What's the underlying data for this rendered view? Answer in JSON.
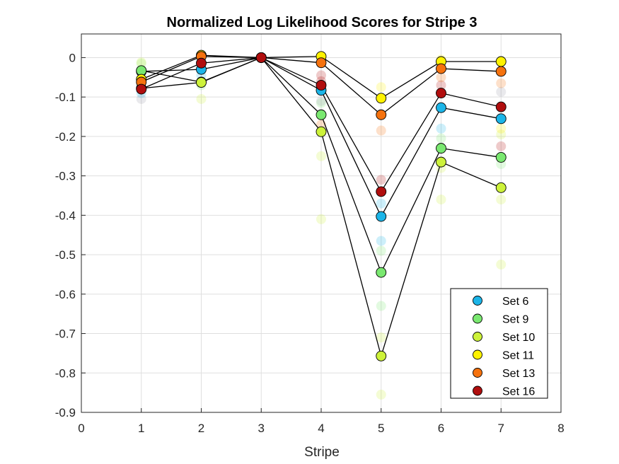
{
  "chart_data": {
    "type": "scatter",
    "title": "Normalized Log Likelihood Scores for Stripe 3",
    "xlabel": "Stripe",
    "ylabel": "",
    "xlim": [
      0,
      8
    ],
    "ylim": [
      -0.9,
      0.06
    ],
    "xticks": [
      "0",
      "1",
      "2",
      "3",
      "4",
      "5",
      "6",
      "7",
      "8"
    ],
    "yticks": [
      "0",
      "-0.1",
      "-0.2",
      "-0.3",
      "-0.4",
      "-0.5",
      "-0.6",
      "-0.7",
      "-0.8",
      "-0.9"
    ],
    "grid": true,
    "legend_position": "bottom-right",
    "x": [
      1,
      2,
      3,
      4,
      5,
      6,
      7
    ],
    "series": [
      {
        "name": "Set 6",
        "color": "#1CB5E8",
        "values": [
          -0.035,
          -0.03,
          0,
          -0.083,
          -0.403,
          -0.127,
          -0.155
        ]
      },
      {
        "name": "Set 9",
        "color": "#7AE870",
        "values": [
          -0.033,
          -0.062,
          0,
          -0.145,
          -0.545,
          -0.23,
          -0.253
        ]
      },
      {
        "name": "Set 10",
        "color": "#CDF23A",
        "values": [
          -0.078,
          -0.063,
          0,
          -0.188,
          -0.757,
          -0.265,
          -0.33
        ]
      },
      {
        "name": "Set 11",
        "color": "#FFF200",
        "values": [
          -0.055,
          0.006,
          0,
          0.003,
          -0.103,
          -0.01,
          -0.01
        ]
      },
      {
        "name": "Set 13",
        "color": "#F5720E",
        "values": [
          -0.062,
          0.003,
          0,
          -0.013,
          -0.145,
          -0.028,
          -0.035
        ]
      },
      {
        "name": "Set 16",
        "color": "#B00E0E",
        "values": [
          -0.08,
          -0.014,
          0,
          -0.07,
          -0.34,
          -0.09,
          -0.125
        ]
      }
    ],
    "faded_points": [
      {
        "color": "#9A9AAA",
        "x": 1,
        "y": -0.105
      },
      {
        "color": "#7AE870",
        "x": 1,
        "y": -0.015
      },
      {
        "color": "#CDF23A",
        "x": 1,
        "y": -0.012
      },
      {
        "color": "#1CB5E8",
        "x": 1,
        "y": -0.09
      },
      {
        "color": "#CDF23A",
        "x": 2,
        "y": -0.105
      },
      {
        "color": "#7AE870",
        "x": 2,
        "y": -0.07
      },
      {
        "color": "#1CB5E8",
        "x": 2,
        "y": -0.045
      },
      {
        "color": "#CDF23A",
        "x": 4,
        "y": -0.41
      },
      {
        "color": "#CDF23A",
        "x": 4,
        "y": -0.25
      },
      {
        "color": "#7AE870",
        "x": 4,
        "y": -0.115
      },
      {
        "color": "#F5720E",
        "x": 4,
        "y": -0.17
      },
      {
        "color": "#B00E0E",
        "x": 4,
        "y": -0.045
      },
      {
        "color": "#B00E0E",
        "x": 4,
        "y": -0.06
      },
      {
        "color": "#9A9AAA",
        "x": 4,
        "y": -0.11
      },
      {
        "color": "#CDF23A",
        "x": 5,
        "y": -0.855
      },
      {
        "color": "#CDF23A",
        "x": 5,
        "y": -0.71
      },
      {
        "color": "#7AE870",
        "x": 5,
        "y": -0.63
      },
      {
        "color": "#7AE870",
        "x": 5,
        "y": -0.49
      },
      {
        "color": "#1CB5E8",
        "x": 5,
        "y": -0.465
      },
      {
        "color": "#1CB5E8",
        "x": 5,
        "y": -0.37
      },
      {
        "color": "#B00E0E",
        "x": 5,
        "y": -0.31
      },
      {
        "color": "#F5720E",
        "x": 5,
        "y": -0.185
      },
      {
        "color": "#FFF200",
        "x": 5,
        "y": -0.075
      },
      {
        "color": "#CDF23A",
        "x": 6,
        "y": -0.36
      },
      {
        "color": "#CDF23A",
        "x": 6,
        "y": -0.28
      },
      {
        "color": "#1CB5E8",
        "x": 6,
        "y": -0.18
      },
      {
        "color": "#7AE870",
        "x": 6,
        "y": -0.205
      },
      {
        "color": "#B00E0E",
        "x": 6,
        "y": -0.07
      },
      {
        "color": "#F5720E",
        "x": 6,
        "y": -0.05
      },
      {
        "color": "#FFF200",
        "x": 6,
        "y": -0.005
      },
      {
        "color": "#CDF23A",
        "x": 7,
        "y": -0.525
      },
      {
        "color": "#CDF23A",
        "x": 7,
        "y": -0.36
      },
      {
        "color": "#7AE870",
        "x": 7,
        "y": -0.27
      },
      {
        "color": "#CDF23A",
        "x": 7,
        "y": -0.195
      },
      {
        "color": "#9A9AAA",
        "x": 7,
        "y": -0.087
      },
      {
        "color": "#F5720E",
        "x": 7,
        "y": -0.065
      },
      {
        "color": "#B00E0E",
        "x": 7,
        "y": -0.225
      },
      {
        "color": "#FFF200",
        "x": 7,
        "y": -0.18
      }
    ]
  }
}
